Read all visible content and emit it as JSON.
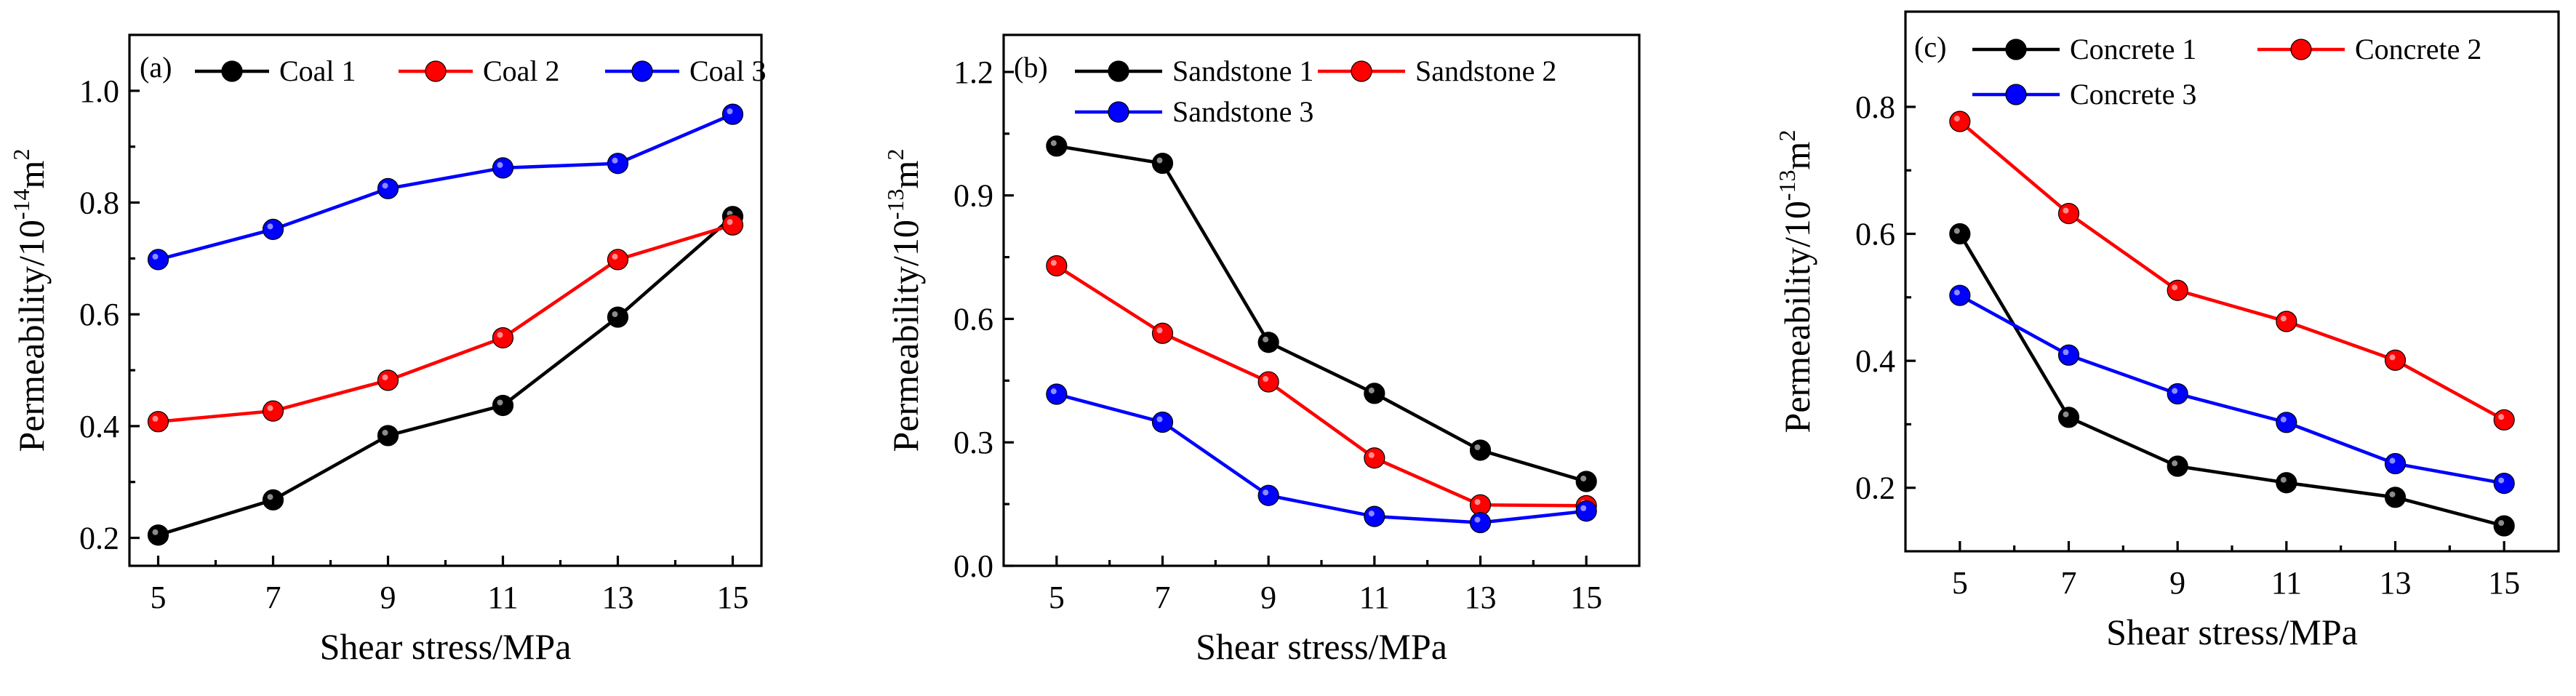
{
  "chart_data": [
    {
      "type": "line",
      "panel_label": "(a)",
      "xlabel": "Shear stress/MPa",
      "ylabel": {
        "base": "Permeability/10",
        "exponent": "-14",
        "unit": "m",
        "unit_exp": "2"
      },
      "x": [
        5,
        7,
        9,
        11,
        13,
        15
      ],
      "xlim": [
        4.5,
        15.5
      ],
      "ylim": [
        0.15,
        1.1
      ],
      "xticks": [
        "5",
        "7",
        "9",
        "11",
        "13",
        "15"
      ],
      "yticks": [
        "0.2",
        "0.4",
        "0.6",
        "0.8",
        "1.0"
      ],
      "ytick_values": [
        0.2,
        0.4,
        0.6,
        0.8,
        1.0
      ],
      "series": [
        {
          "name": "Coal 1",
          "color": "#000000",
          "values": [
            0.205,
            0.268,
            0.383,
            0.437,
            0.595,
            0.775
          ]
        },
        {
          "name": "Coal 2",
          "color": "#ff0000",
          "values": [
            0.408,
            0.427,
            0.482,
            0.558,
            0.698,
            0.76
          ]
        },
        {
          "name": "Coal 3",
          "color": "#0000ff",
          "values": [
            0.698,
            0.752,
            0.825,
            0.862,
            0.87,
            0.958
          ]
        }
      ]
    },
    {
      "type": "line",
      "panel_label": "(b)",
      "xlabel": "Shear stress/MPa",
      "ylabel": {
        "base": "Permeability/10",
        "exponent": "-13",
        "unit": "m",
        "unit_exp": "2"
      },
      "x": [
        5,
        7,
        9,
        11,
        13,
        15
      ],
      "xlim": [
        4.0,
        16.0
      ],
      "ylim": [
        0.0,
        1.29
      ],
      "xticks": [
        "5",
        "7",
        "9",
        "11",
        "13",
        "15"
      ],
      "yticks": [
        "0.0",
        "0.3",
        "0.6",
        "0.9",
        "1.2"
      ],
      "ytick_values": [
        0.0,
        0.3,
        0.6,
        0.9,
        1.2
      ],
      "series": [
        {
          "name": "Sandstone 1",
          "color": "#000000",
          "values": [
            1.02,
            0.978,
            0.543,
            0.419,
            0.281,
            0.205
          ]
        },
        {
          "name": "Sandstone 2",
          "color": "#ff0000",
          "values": [
            0.729,
            0.565,
            0.447,
            0.262,
            0.148,
            0.146
          ]
        },
        {
          "name": "Sandstone 3",
          "color": "#0000ff",
          "values": [
            0.417,
            0.349,
            0.171,
            0.12,
            0.105,
            0.133
          ]
        }
      ]
    },
    {
      "type": "line",
      "panel_label": "(c)",
      "xlabel": "Shear stress/MPa",
      "ylabel": {
        "base": "Permeability/10",
        "exponent": "-13",
        "unit": "m",
        "unit_exp": "2"
      },
      "x": [
        5,
        7,
        9,
        11,
        13,
        15
      ],
      "xlim": [
        4.0,
        16.0
      ],
      "ylim": [
        0.1,
        0.95
      ],
      "xticks": [
        "5",
        "7",
        "9",
        "11",
        "13",
        "15"
      ],
      "yticks": [
        "0.2",
        "0.4",
        "0.6",
        "0.8"
      ],
      "ytick_values": [
        0.2,
        0.4,
        0.6,
        0.8
      ],
      "series": [
        {
          "name": "Concrete 1",
          "color": "#000000",
          "values": [
            0.6,
            0.311,
            0.234,
            0.208,
            0.185,
            0.14
          ]
        },
        {
          "name": "Concrete 2",
          "color": "#ff0000",
          "values": [
            0.777,
            0.632,
            0.511,
            0.462,
            0.401,
            0.307
          ]
        },
        {
          "name": "Concrete 3",
          "color": "#0000ff",
          "values": [
            0.503,
            0.409,
            0.348,
            0.303,
            0.238,
            0.207
          ]
        }
      ]
    }
  ]
}
